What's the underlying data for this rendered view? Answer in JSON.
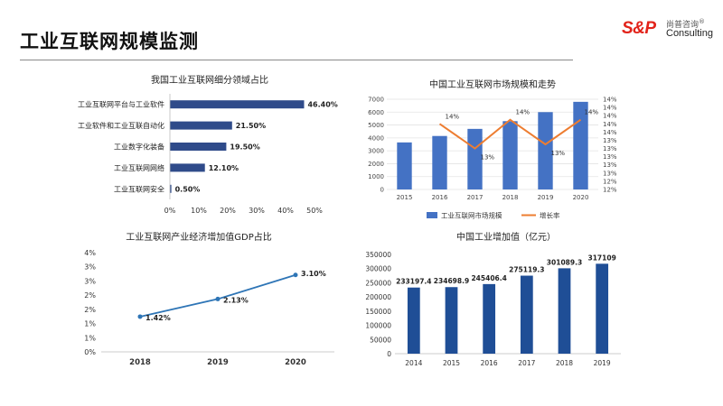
{
  "page": {
    "title": "工业互联网规模监测",
    "logo": {
      "brand": "S&P",
      "cn": "尚普咨询",
      "en": "Consulting",
      "mark": "®"
    }
  },
  "chart_data": [
    {
      "id": "segments",
      "type": "bar",
      "orientation": "horizontal",
      "title": "我国工业互联网细分领域占比",
      "categories": [
        "工业互联网平台与工业软件",
        "工业软件和工业互联自动化",
        "工业数字化装备",
        "工业互联网网络",
        "工业互联网安全"
      ],
      "values": [
        46.4,
        21.5,
        19.5,
        12.1,
        0.5
      ],
      "value_labels": [
        "46.40%",
        "21.50%",
        "19.50%",
        "12.10%",
        "0.50%"
      ],
      "xlim": [
        0,
        50
      ],
      "xticks": [
        "0%",
        "10%",
        "20%",
        "30%",
        "40%",
        "50%"
      ],
      "bar_color": "#2f4b8a"
    },
    {
      "id": "market",
      "type": "bar+line",
      "title": "中国工业互联网市场规模和走势",
      "categories": [
        "2015",
        "2016",
        "2017",
        "2018",
        "2019",
        "2020"
      ],
      "series": [
        {
          "name": "工业互联网市场规模",
          "type": "bar",
          "axis": "left",
          "values": [
            3650,
            4150,
            4700,
            5300,
            6000,
            6800
          ]
        },
        {
          "name": "增长率",
          "type": "line",
          "axis": "right",
          "values": [
            null,
            13.6,
            13.0,
            13.7,
            13.1,
            13.7
          ]
        }
      ],
      "line_labels": [
        "",
        "14%",
        "13%",
        "14%",
        "13%",
        "14%"
      ],
      "ylim_left": [
        0,
        7000
      ],
      "yticks_left": [
        "0",
        "1000",
        "2000",
        "3000",
        "4000",
        "5000",
        "6000",
        "7000"
      ],
      "ylim_right": [
        12.0,
        14.2
      ],
      "yticks_right": [
        "12%",
        "12%",
        "13%",
        "13%",
        "13%",
        "13%",
        "13%",
        "14%",
        "14%",
        "14%",
        "14%",
        "14%"
      ],
      "bar_color": "#4472c4",
      "line_color": "#ed7d31"
    },
    {
      "id": "gdp",
      "type": "line",
      "title": "工业互联网产业经济增加值GDP占比",
      "categories": [
        "2018",
        "2019",
        "2020"
      ],
      "values": [
        1.42,
        2.13,
        3.1
      ],
      "value_labels": [
        "1.42%",
        "2.13%",
        "3.10%"
      ],
      "ylim": [
        0,
        4
      ],
      "yticks": [
        "0%",
        "1%",
        "1%",
        "2%",
        "2%",
        "3%",
        "3%",
        "4%"
      ],
      "line_color": "#2e75b6"
    },
    {
      "id": "added",
      "type": "bar",
      "title": "中国工业增加值（亿元）",
      "categories": [
        "2014",
        "2015",
        "2016",
        "2017",
        "2018",
        "2019"
      ],
      "values": [
        233197.4,
        234698.9,
        245406.4,
        275119.3,
        301089.3,
        317109
      ],
      "value_labels": [
        "233197.4",
        "234698.9",
        "245406.4",
        "275119.3",
        "301089.3",
        "317109"
      ],
      "ylim": [
        0,
        350000
      ],
      "yticks": [
        "0",
        "50000",
        "100000",
        "150000",
        "200000",
        "250000",
        "300000",
        "350000"
      ],
      "bar_color": "#1f4e96"
    }
  ]
}
